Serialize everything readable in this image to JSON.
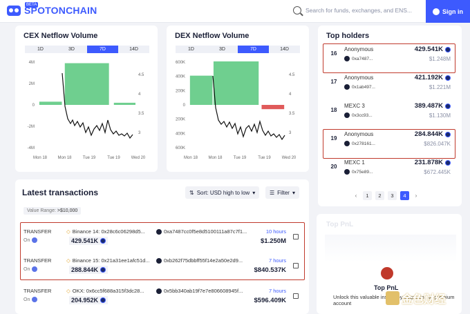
{
  "header": {
    "logo_text": "SPOTONCHAIN",
    "logo_badge": "BETA",
    "search_placeholder": "Search for funds, exchanges, and ENS...",
    "signin_label": "Sign in"
  },
  "cex_chart": {
    "title": "CEX Netflow Volume",
    "tabs": [
      "1D",
      "3D",
      "7D",
      "14D"
    ],
    "active_tab": "7D",
    "y_left_ticks": [
      "4M",
      "2M",
      "0",
      "-2M",
      "-4M"
    ],
    "y_right_ticks": [
      "4.5",
      "4",
      "3.5",
      "3"
    ],
    "x_ticks": [
      "Mon 18",
      "Mon 18",
      "Tue 19",
      "Tue 19",
      "Wed 20"
    ]
  },
  "dex_chart": {
    "title": "DEX Netflow Volume",
    "tabs": [
      "1D",
      "3D",
      "7D",
      "14D"
    ],
    "active_tab": "7D",
    "y_left_ticks": [
      "600K",
      "400K",
      "200K",
      "0",
      "-200K",
      "-400K",
      "-600K"
    ],
    "y_right_ticks": [
      "4.5",
      "4",
      "3.5",
      "3"
    ],
    "x_ticks": [
      "Mon 18",
      "Mon 18",
      "Tue 19",
      "Tue 19",
      "Wed 20"
    ]
  },
  "chart_data": [
    {
      "type": "bar",
      "title": "CEX Netflow Volume",
      "categories": [
        "Mon 18 AM",
        "Mon 18 PM",
        "Tue 19 AM",
        "Tue 19 PM"
      ],
      "values": [
        300000,
        3900000,
        0,
        200000
      ],
      "ylim": [
        -4000000,
        4000000
      ],
      "secondary_line_range": [
        2.9,
        4.5
      ]
    },
    {
      "type": "bar",
      "title": "DEX Netflow Volume",
      "categories": [
        "Mon 18 AM",
        "Mon 18 PM",
        "Tue 19 AM",
        "Wed 20"
      ],
      "values": [
        410000,
        610000,
        0,
        -60000
      ],
      "ylim": [
        -600000,
        600000
      ],
      "secondary_line_range": [
        2.9,
        4.5
      ]
    }
  ],
  "top_holders": {
    "title": "Top holders",
    "rows": [
      {
        "rank": "16",
        "name": "Anonymous",
        "addr": "0xa7487...",
        "amount": "429.541K",
        "usd": "$1.248M"
      },
      {
        "rank": "17",
        "name": "Anonymous",
        "addr": "0x1ab497...",
        "amount": "421.192K",
        "usd": "$1.221M"
      },
      {
        "rank": "18",
        "name": "MEXC 3",
        "addr": "0x3cc93...",
        "amount": "389.487K",
        "usd": "$1.130M"
      },
      {
        "rank": "19",
        "name": "Anonymous",
        "addr": "0x278161...",
        "amount": "284.844K",
        "usd": "$826.047K"
      },
      {
        "rank": "20",
        "name": "MEXC 1",
        "addr": "0x75e89...",
        "amount": "231.878K",
        "usd": "$672.445K"
      }
    ],
    "pages": [
      "1",
      "2",
      "3",
      "4"
    ],
    "active_page": "4"
  },
  "transactions": {
    "title": "Latest transactions",
    "sort_label": "Sort: USD high to low",
    "filter_label": "Filter",
    "value_range_label": "Value Range:",
    "value_range_value": ">$10,000",
    "rows": [
      {
        "type": "TRANSFER",
        "on": "On",
        "from": "Binance 14: 0x28c6c06298d5...",
        "to": "0xa7487cc0f5e8d5100111a87c7f1...",
        "amount": "429.541K",
        "time": "10 hours",
        "usd": "$1.250M"
      },
      {
        "type": "TRANSFER",
        "on": "On",
        "from": "Binance 15: 0x21a31ee1afc51d...",
        "to": "0xb262f75dbbff55f14e2a50e2d9...",
        "amount": "288.844K",
        "time": "7 hours",
        "usd": "$840.537K"
      },
      {
        "type": "TRANSFER",
        "on": "On",
        "from": "OKX: 0x6cc5f688a315f3dc28...",
        "to": "0x5bb340ab19f7e7e806608945f...",
        "amount": "204.952K",
        "time": "7 hours",
        "usd": "$596.409K"
      }
    ]
  },
  "pnl": {
    "bg_title": "Top PnL",
    "title": "Top PnL",
    "text": "Unlock this valuable insight by upgrading to premium account"
  },
  "watermark": {
    "text": "金色财经"
  }
}
